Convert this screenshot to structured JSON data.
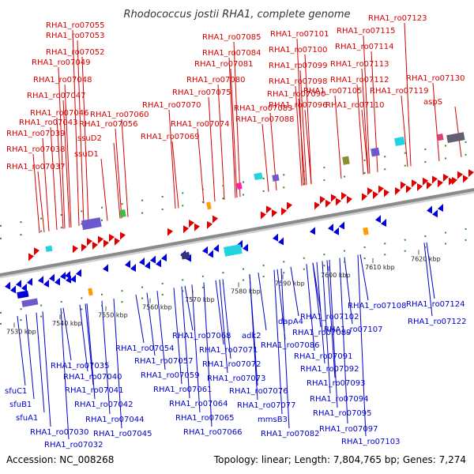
{
  "title": "Rhodococcus jostii RHA1, complete genome",
  "accession": "Accession: NC_008268",
  "summary": "Topology: linear; Length: 7,804,765 bp; Genes: 7,274",
  "colors": {
    "forward_genes": "#e00000",
    "reverse_genes": "#0000dd",
    "top_labels": "#d40000",
    "bottom_labels": "#0000c8",
    "backbone": "#8a8a8a",
    "feature_purple": "#6a5acd",
    "feature_cyan": "#22d3e0",
    "feature_magenta": "#ff1fa0",
    "feature_orange": "#ff9a00",
    "feature_green": "#44bb44",
    "feature_olive": "#8a8f30"
  },
  "axis": {
    "ticks": [
      {
        "label": "7530 kbp",
        "kbp": 7530
      },
      {
        "label": "7540 kbp",
        "kbp": 7540
      },
      {
        "label": "7550 kbp",
        "kbp": 7550
      },
      {
        "label": "7560 kbp",
        "kbp": 7560
      },
      {
        "label": "7570 kbp",
        "kbp": 7570
      },
      {
        "label": "7580 kbp",
        "kbp": 7580
      },
      {
        "label": "7590 kbp",
        "kbp": 7590
      },
      {
        "label": "7600 kbp",
        "kbp": 7600
      },
      {
        "label": "7610 kbp",
        "kbp": 7610
      },
      {
        "label": "7620 kbp",
        "kbp": 7620
      }
    ]
  },
  "top_labels": [
    "RHA1_ro07055",
    "RHA1_ro07053",
    "RHA1_ro07052",
    "RHA1_ro07049",
    "RHA1_ro07048",
    "RHA1_ro07047",
    "RHA1_ro07046",
    "RHA1_ro07043",
    "RHA1_ro07039",
    "RHA1_ro07038",
    "RHA1_ro07037",
    "ssuD2",
    "ssuD1",
    "RHA1_ro07060",
    "RHA1_ro07056",
    "RHA1_ro07070",
    "RHA1_ro07069",
    "RHA1_ro07075",
    "RHA1_ro07074",
    "RHA1_ro07080",
    "RHA1_ro07081",
    "RHA1_ro07084",
    "RHA1_ro07085",
    "RHA1_ro07083",
    "RHA1_ro07088",
    "RHA1_ro07090",
    "RHA1_ro07096",
    "RHA1_ro07098",
    "RHA1_ro07099",
    "RHA1_ro07100",
    "RHA1_ro07101",
    "RHA1_ro07105",
    "RHA1_ro07110",
    "RHA1_ro07112",
    "RHA1_ro07113",
    "RHA1_ro07114",
    "RHA1_ro07115",
    "RHA1_ro07119",
    "RHA1_ro07123",
    "RHA1_ro07130",
    "aspS"
  ],
  "bottom_labels": [
    "RHA1_ro07035",
    "RHA1_ro07040",
    "RHA1_ro07041",
    "RHA1_ro07042",
    "RHA1_ro07044",
    "RHA1_ro07045",
    "sfuC1",
    "sfuB1",
    "sfuA1",
    "RHA1_ro07030",
    "RHA1_ro07032",
    "RHA1_ro07054",
    "RHA1_ro07057",
    "RHA1_ro07059",
    "RHA1_ro07061",
    "RHA1_ro07064",
    "RHA1_ro07065",
    "RHA1_ro07066",
    "RHA1_ro07068",
    "RHA1_ro07071",
    "RHA1_ro07072",
    "RHA1_ro07073",
    "adk2",
    "RHA1_ro07076",
    "RHA1_ro07077",
    "mmsB3",
    "RHA1_ro07082",
    "dapA4",
    "RHA1_ro07086",
    "RHA1_ro07089",
    "RHA1_ro07091",
    "RHA1_ro07092",
    "RHA1_ro07093",
    "RHA1_ro07094",
    "RHA1_ro07095",
    "RHA1_ro07097",
    "RHA1_ro07102",
    "RHA1_ro07103",
    "RHA1_ro07107",
    "RHA1_ro07108",
    "RHA1_ro07122",
    "RHA1_ro07124"
  ]
}
